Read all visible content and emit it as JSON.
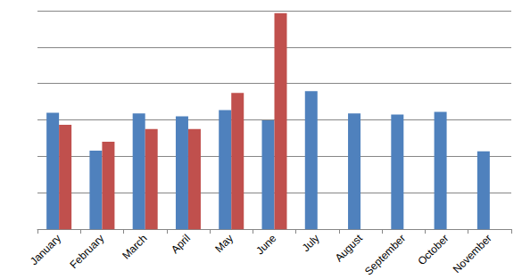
{
  "chart_data": {
    "type": "bar",
    "categories": [
      "January",
      "February",
      "March",
      "April",
      "May",
      "June",
      "July",
      "August",
      "September",
      "October",
      "November"
    ],
    "series": [
      {
        "color": "#4f81bd",
        "values": [
          3.2,
          2.16,
          3.18,
          3.1,
          3.27,
          2.99,
          3.79,
          3.18,
          3.15,
          3.22,
          2.14
        ]
      },
      {
        "color": "#c0504d",
        "values": [
          2.87,
          2.4,
          2.75,
          2.75,
          3.74,
          5.93,
          null,
          null,
          null,
          null,
          null
        ]
      }
    ],
    "ylim": [
      0,
      6
    ],
    "yticks": [
      0,
      1,
      2,
      3,
      4,
      5,
      6
    ],
    "grid": true,
    "tick_labels": "x"
  }
}
